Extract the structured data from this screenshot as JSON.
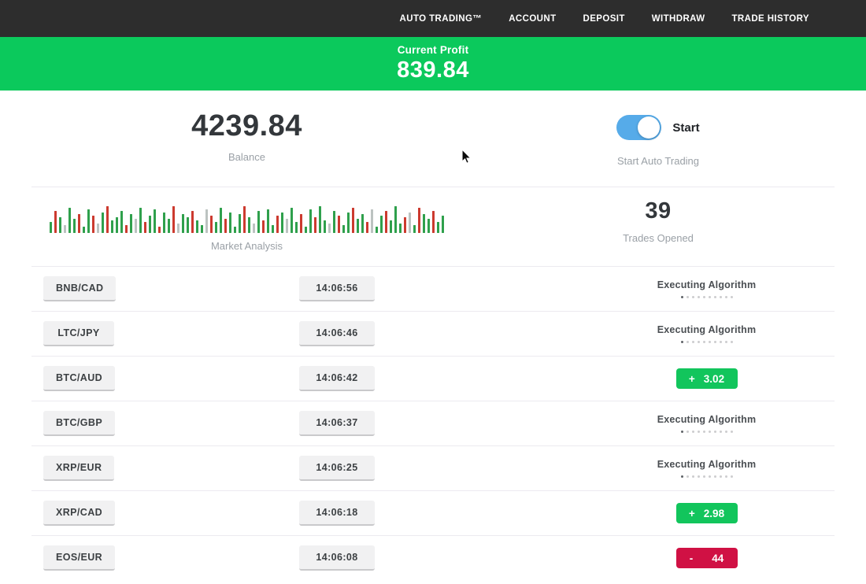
{
  "nav": {
    "items": [
      {
        "id": "auto-trading",
        "label": "AUTO TRADING™"
      },
      {
        "id": "account",
        "label": "ACCOUNT"
      },
      {
        "id": "deposit",
        "label": "DEPOSIT"
      },
      {
        "id": "withdraw",
        "label": "WITHDRAW"
      },
      {
        "id": "trade-history",
        "label": "TRADE HISTORY"
      }
    ]
  },
  "profit_banner": {
    "label": "Current Profit",
    "value": "839.84"
  },
  "stats": {
    "balance": {
      "value": "4239.84",
      "label": "Balance"
    },
    "auto_trading": {
      "toggle_label": "Start",
      "toggle_state": "on",
      "label": "Start Auto Trading"
    },
    "market_analysis": {
      "label": "Market Analysis"
    },
    "trades_opened": {
      "value": "39",
      "label": "Trades Opened"
    }
  },
  "chart_data": {
    "type": "bar",
    "title": "Market Analysis",
    "xlabel": "",
    "ylabel": "",
    "legend": false,
    "axes_shown": false,
    "palette": {
      "g": "#2fa04c",
      "r": "#cc3a2f",
      "p": "#bcc3c1"
    },
    "colors": "grgpggrggrpgrgggrgpgrggrggrpggrggprggrgggrgpgrggrgpggrggrggpgrggrggrpggrgggrpgrggrgg",
    "heights": [
      14,
      28,
      20,
      10,
      32,
      18,
      24,
      8,
      30,
      22,
      12,
      26,
      34,
      16,
      20,
      28,
      10,
      24,
      18,
      32,
      14,
      22,
      30,
      8,
      26,
      18,
      34,
      12,
      24,
      20,
      28,
      16,
      10,
      30,
      22,
      14,
      32,
      18,
      26,
      8,
      24,
      34,
      20,
      12,
      28,
      16,
      30,
      10,
      22,
      26,
      18,
      32,
      14,
      24,
      8,
      30,
      20,
      34,
      16,
      12,
      28,
      22,
      10,
      26,
      32,
      18,
      24,
      14,
      30,
      8,
      22,
      28,
      16,
      34,
      12,
      20,
      26,
      10,
      32,
      24,
      18,
      28,
      14,
      22
    ]
  },
  "trades": [
    {
      "pair": "BNB/CAD",
      "time": "14:06:56",
      "status": {
        "type": "executing",
        "label": "Executing Algorithm"
      }
    },
    {
      "pair": "LTC/JPY",
      "time": "14:06:46",
      "status": {
        "type": "executing",
        "label": "Executing Algorithm"
      }
    },
    {
      "pair": "BTC/AUD",
      "time": "14:06:42",
      "status": {
        "type": "profit",
        "sign": "+",
        "value": "3.02"
      }
    },
    {
      "pair": "BTC/GBP",
      "time": "14:06:37",
      "status": {
        "type": "executing",
        "label": "Executing Algorithm"
      }
    },
    {
      "pair": "XRP/EUR",
      "time": "14:06:25",
      "status": {
        "type": "executing",
        "label": "Executing Algorithm"
      }
    },
    {
      "pair": "XRP/CAD",
      "time": "14:06:18",
      "status": {
        "type": "profit",
        "sign": "+",
        "value": "2.98"
      }
    },
    {
      "pair": "EOS/EUR",
      "time": "14:06:08",
      "status": {
        "type": "loss",
        "sign": "-",
        "value": "44"
      }
    }
  ],
  "colors": {
    "navbar_bg": "#2d2d2d",
    "banner_green": "#0bc95c",
    "badge_green": "#12c55c",
    "badge_red": "#d01144",
    "toggle_blue": "#56abe9",
    "chip_bg": "#f1f1f2",
    "chip_border": "#c9c9cb",
    "text_dark": "#34383c",
    "text_gray": "#9aa0a6",
    "divider": "#eceaf0"
  }
}
